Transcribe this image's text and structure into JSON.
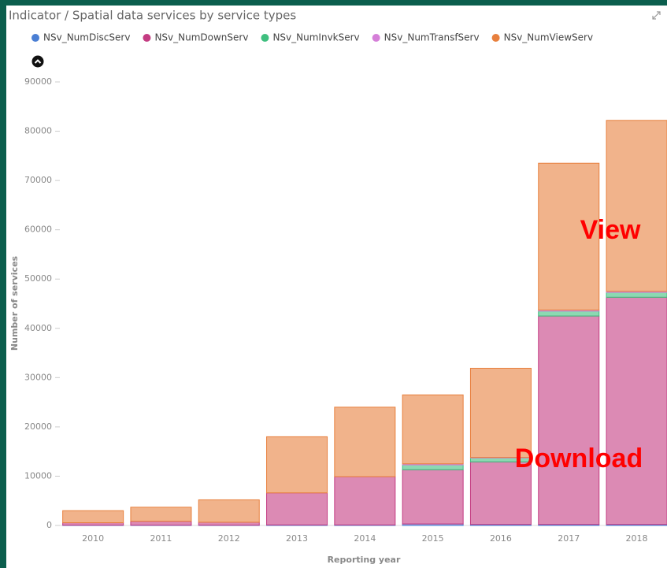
{
  "chart_data": {
    "type": "stacked_bar",
    "title": "Indicator / Spatial data services by service types",
    "x_label": "Reporting year",
    "y_label": "Number of services",
    "categories": [
      "2010",
      "2011",
      "2012",
      "2013",
      "2014",
      "2015",
      "2016",
      "2017",
      "2018"
    ],
    "series": [
      {
        "name": "NSv_NumDiscServ",
        "color": "#4a7fd4",
        "values": [
          50,
          50,
          50,
          100,
          100,
          300,
          200,
          200,
          200
        ]
      },
      {
        "name": "NSv_NumDownServ",
        "color": "#c43c82",
        "values": [
          500,
          800,
          600,
          6500,
          9800,
          11000,
          12700,
          42300,
          46100
        ]
      },
      {
        "name": "NSv_NumInvkServ",
        "color": "#3fbf7f",
        "values": [
          0,
          0,
          0,
          0,
          0,
          1000,
          800,
          1000,
          1000
        ]
      },
      {
        "name": "NSv_NumTransfServ",
        "color": "#d57fd8",
        "values": [
          0,
          0,
          0,
          0,
          0,
          200,
          100,
          200,
          200
        ]
      },
      {
        "name": "NSv_NumViewServ",
        "color": "#e8803e",
        "values": [
          2450,
          2850,
          4550,
          11400,
          14100,
          14000,
          18100,
          29800,
          34700
        ]
      }
    ],
    "ylim": [
      0,
      90000
    ],
    "yticks": [
      0,
      10000,
      20000,
      30000,
      40000,
      50000,
      60000,
      70000,
      80000,
      90000
    ],
    "legend": "top",
    "annotations": [
      "View",
      "Download"
    ]
  }
}
